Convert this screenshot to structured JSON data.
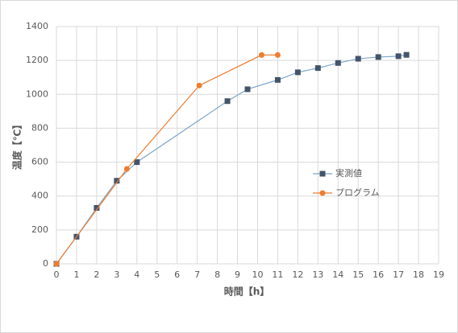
{
  "chart_data": {
    "type": "line",
    "x_label": "時間【h】",
    "y_label": "温度【℃】",
    "xlim": [
      0,
      19
    ],
    "xticks": [
      0,
      1,
      2,
      3,
      4,
      5,
      6,
      7,
      8,
      9,
      10,
      11,
      12,
      13,
      14,
      15,
      16,
      17,
      18,
      19
    ],
    "ylim": [
      0,
      1400
    ],
    "yticks": [
      0,
      200,
      400,
      600,
      800,
      1000,
      1200,
      1400
    ],
    "grid": true,
    "legend": "right",
    "series": [
      {
        "name": "実測値",
        "color": "#7ea6c8",
        "marker_color": "#44546a",
        "marker": "square",
        "x": [
          0,
          1,
          2,
          3,
          4,
          8.5,
          9.5,
          11,
          12,
          13,
          14,
          15,
          16,
          17,
          17.4
        ],
        "values": [
          0,
          160,
          330,
          490,
          600,
          960,
          1030,
          1085,
          1130,
          1155,
          1185,
          1210,
          1220,
          1225,
          1233
        ]
      },
      {
        "name": "プログラム",
        "color": "#ed7d31",
        "marker_color": "#ed7d31",
        "marker": "circle",
        "x": [
          0,
          3.5,
          7.1,
          10.2,
          11
        ],
        "values": [
          0,
          560,
          1052,
          1232,
          1232
        ]
      }
    ]
  }
}
